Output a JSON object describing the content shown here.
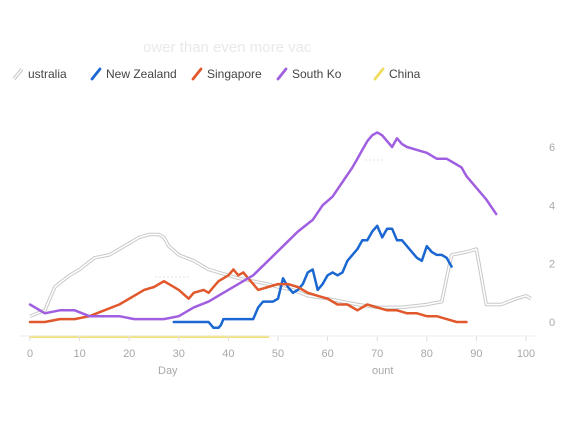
{
  "chart_data": {
    "type": "line",
    "title": "ower than even more vac",
    "xlabel": "Day",
    "xlabel_secondary": "ount",
    "xlim": [
      0,
      101
    ],
    "ylim": [
      -0.5,
      7
    ],
    "x_ticks": [
      "0",
      "10",
      "20",
      "30",
      "40",
      "50",
      "60",
      "70",
      "80",
      "90",
      "100"
    ],
    "y_ticks": [
      "0",
      "2",
      "4",
      "6"
    ],
    "legend_position": "top",
    "series": [
      {
        "name": "Australia",
        "legend_label": "ustralia",
        "color": "#cccccc",
        "style": "outline",
        "x": [
          0,
          3,
          5,
          8,
          10,
          13,
          16,
          18,
          20,
          22,
          24,
          26,
          27,
          28,
          30,
          33,
          36,
          38,
          40,
          42,
          45,
          48,
          50,
          53,
          56,
          60,
          63,
          66,
          70,
          75,
          80,
          83,
          85,
          88,
          90,
          92,
          95,
          98,
          100,
          101
        ],
        "y": [
          0.2,
          0.4,
          1.2,
          1.6,
          1.8,
          2.2,
          2.3,
          2.5,
          2.7,
          2.9,
          3.0,
          3.0,
          2.9,
          2.6,
          2.3,
          2.1,
          1.8,
          1.7,
          1.6,
          1.5,
          1.4,
          1.3,
          1.2,
          1.1,
          0.9,
          0.8,
          0.7,
          0.6,
          0.5,
          0.5,
          0.6,
          0.7,
          2.3,
          2.4,
          2.5,
          0.6,
          0.6,
          0.8,
          0.9,
          0.8
        ]
      },
      {
        "name": "New Zealand",
        "legend_label": "New Zealand",
        "color": "#1a67d2",
        "style": "solid",
        "x": [
          29,
          30,
          31,
          32,
          33,
          34,
          35,
          36,
          37,
          38,
          38.5,
          39,
          40,
          41,
          42,
          43,
          44,
          45,
          45.5,
          46,
          46.5,
          47,
          48,
          49,
          50,
          51,
          52,
          53,
          54,
          55,
          56,
          57,
          58,
          59,
          60,
          61,
          62,
          63,
          64,
          65,
          66,
          67,
          68,
          69,
          70,
          71,
          72,
          73,
          74,
          75,
          76,
          77,
          78,
          79,
          80,
          81,
          82,
          83,
          84,
          85
        ],
        "y": [
          0,
          0,
          0,
          0,
          0,
          0,
          0,
          0,
          -0.2,
          -0.2,
          -0.1,
          0.1,
          0.1,
          0.1,
          0.1,
          0.1,
          0.1,
          0.1,
          0.3,
          0.5,
          0.6,
          0.7,
          0.7,
          0.7,
          0.8,
          1.5,
          1.2,
          1.0,
          1.1,
          1.3,
          1.7,
          1.8,
          1.1,
          1.3,
          1.6,
          1.7,
          1.6,
          1.7,
          2.1,
          2.3,
          2.5,
          2.8,
          2.8,
          3.1,
          3.3,
          2.9,
          3.2,
          3.2,
          2.8,
          2.8,
          2.6,
          2.4,
          2.2,
          2.1,
          2.6,
          2.4,
          2.3,
          2.3,
          2.2,
          1.9
        ]
      },
      {
        "name": "Singapore",
        "legend_label": "Singapore",
        "color": "#e0582c",
        "style": "solid",
        "x": [
          0,
          3,
          6,
          9,
          12,
          15,
          18,
          21,
          23,
          25,
          27,
          28,
          30,
          32,
          33,
          35,
          36,
          37,
          38,
          39,
          40,
          41,
          42,
          43,
          44,
          45,
          46,
          48,
          50,
          52,
          54,
          56,
          58,
          60,
          62,
          64,
          66,
          68,
          70,
          72,
          74,
          76,
          78,
          80,
          82,
          84,
          86,
          87,
          88
        ],
        "y": [
          0,
          0,
          0.1,
          0.1,
          0.2,
          0.4,
          0.6,
          0.9,
          1.1,
          1.2,
          1.4,
          1.3,
          1.1,
          0.8,
          1.0,
          1.1,
          1.0,
          1.2,
          1.4,
          1.5,
          1.6,
          1.8,
          1.6,
          1.7,
          1.5,
          1.3,
          1.1,
          1.2,
          1.3,
          1.3,
          1.2,
          1.0,
          0.9,
          0.8,
          0.6,
          0.6,
          0.4,
          0.6,
          0.5,
          0.4,
          0.4,
          0.3,
          0.3,
          0.2,
          0.2,
          0.1,
          0.0,
          0.0,
          0.0
        ]
      },
      {
        "name": "South Korea",
        "legend_label": "South Ko",
        "color": "#a05fe0",
        "style": "solid",
        "x": [
          0,
          3,
          6,
          9,
          12,
          15,
          18,
          21,
          24,
          27,
          30,
          33,
          36,
          39,
          42,
          45,
          48,
          51,
          54,
          57,
          59,
          61,
          63,
          65,
          66,
          67,
          68,
          69,
          70,
          71,
          72,
          73,
          74,
          75,
          76,
          78,
          80,
          82,
          84,
          86,
          87,
          88,
          90,
          92,
          94
        ],
        "y": [
          0.6,
          0.3,
          0.4,
          0.4,
          0.2,
          0.2,
          0.2,
          0.1,
          0.1,
          0.1,
          0.2,
          0.5,
          0.7,
          1.0,
          1.3,
          1.6,
          2.1,
          2.6,
          3.1,
          3.5,
          4.0,
          4.3,
          4.8,
          5.3,
          5.6,
          5.9,
          6.2,
          6.4,
          6.5,
          6.4,
          6.2,
          6.0,
          6.3,
          6.1,
          6.0,
          5.9,
          5.8,
          5.6,
          5.6,
          5.4,
          5.3,
          5.0,
          4.6,
          4.2,
          3.7
        ]
      },
      {
        "name": "China",
        "legend_label": "China",
        "color": "#f0dc60",
        "style": "solid",
        "x": [
          0,
          48
        ],
        "y": [
          -0.5,
          -0.5
        ]
      }
    ]
  }
}
